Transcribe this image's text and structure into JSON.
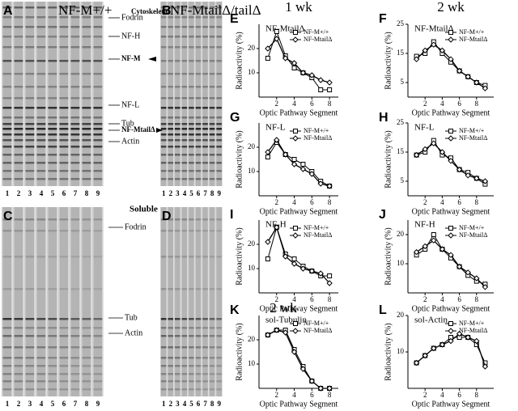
{
  "gels": [
    {
      "letter": "A",
      "title": "NF-M+/+",
      "lanes": [
        1,
        2,
        3,
        4,
        5,
        6,
        7,
        8,
        9
      ]
    },
    {
      "letter": "B",
      "title": "NF-MtailΔ/tailΔ",
      "lanes": [
        1,
        2,
        3,
        4,
        5,
        6,
        7,
        8,
        9
      ]
    },
    {
      "letter": "C",
      "lanes": [
        1,
        2,
        3,
        4,
        5,
        6,
        7,
        8,
        9
      ]
    },
    {
      "letter": "D",
      "lanes": [
        1,
        2,
        3,
        4,
        5,
        6,
        7,
        8,
        9
      ]
    }
  ],
  "fraction_labels": [
    "Cytoskeletal",
    "Soluble"
  ],
  "band_labels_top": [
    "Fodrin",
    "NF-H",
    "NF-M",
    "NF-L",
    "Tub",
    "NF-MtailΔ",
    "Actin"
  ],
  "band_labels_bottom": [
    "Fodrin",
    "Tub",
    "Actin"
  ],
  "column_headers": [
    "1 wk",
    "2 wk"
  ],
  "chart_data": [
    {
      "type": "line",
      "letter": "E",
      "title": "NF-MtailΔ",
      "y_label": "Radioactivity (%)",
      "x_label": "Optic Pathway Segment",
      "x": [
        1,
        2,
        3,
        4,
        5,
        6,
        7,
        8
      ],
      "xlim": [
        0,
        9
      ],
      "xticks": [
        2,
        4,
        6,
        8
      ],
      "ylim": [
        0,
        30
      ],
      "yticks": [
        10,
        20
      ],
      "series": [
        {
          "name": "NF-M+/+",
          "color": "#000000",
          "marker": "square",
          "values": [
            16,
            27,
            17,
            12,
            10,
            8,
            3,
            3
          ]
        },
        {
          "name": "NF-MtailΔ",
          "color": "#000000",
          "marker": "diamond",
          "values": [
            20,
            24,
            16,
            14,
            10,
            9,
            7,
            6
          ]
        }
      ]
    },
    {
      "type": "line",
      "letter": "F",
      "title": "NF-MtailΔ",
      "y_label": "Radioactivity (%)",
      "x_label": "Optic Pathway Segment",
      "x": [
        1,
        2,
        3,
        4,
        5,
        6,
        7,
        8,
        9
      ],
      "xlim": [
        0,
        10
      ],
      "xticks": [
        2,
        4,
        6,
        8
      ],
      "ylim": [
        0,
        25
      ],
      "yticks": [
        5,
        15,
        25
      ],
      "series": [
        {
          "name": "NF-M+/+",
          "color": "#000000",
          "marker": "square",
          "values": [
            14,
            15,
            19,
            15,
            12,
            9,
            7,
            5,
            4
          ]
        },
        {
          "name": "NF-MtailΔ",
          "color": "#000000",
          "marker": "diamond",
          "values": [
            13,
            16,
            18,
            16,
            13,
            9,
            7,
            5,
            3
          ]
        }
      ]
    },
    {
      "type": "line",
      "letter": "G",
      "title": "NF-L",
      "y_label": "Radioactivity (%)",
      "x_label": "Optic Pathway Segment",
      "x": [
        1,
        2,
        3,
        4,
        5,
        6,
        7,
        8
      ],
      "xlim": [
        0,
        9
      ],
      "xticks": [
        2,
        4,
        6,
        8
      ],
      "ylim": [
        0,
        30
      ],
      "yticks": [
        10,
        20
      ],
      "series": [
        {
          "name": "NF-M+/+",
          "color": "#000000",
          "marker": "square",
          "values": [
            16,
            22,
            17,
            15,
            13,
            10,
            6,
            4
          ]
        },
        {
          "name": "NF-MtailΔ",
          "color": "#000000",
          "marker": "diamond",
          "values": [
            18,
            23,
            17,
            13,
            11,
            9,
            5,
            4
          ]
        }
      ]
    },
    {
      "type": "line",
      "letter": "H",
      "title": "NF-L",
      "y_label": "Radioactivity (%)",
      "x_label": "Optic Pathway Segment",
      "x": [
        1,
        2,
        3,
        4,
        5,
        6,
        7,
        8,
        9
      ],
      "xlim": [
        0,
        10
      ],
      "xticks": [
        2,
        4,
        6,
        8
      ],
      "ylim": [
        0,
        25
      ],
      "yticks": [
        5,
        15,
        25
      ],
      "series": [
        {
          "name": "NF-M+/+",
          "color": "#000000",
          "marker": "square",
          "values": [
            14,
            15,
            19,
            14,
            13,
            9,
            8,
            6,
            4
          ]
        },
        {
          "name": "NF-MtailΔ",
          "color": "#000000",
          "marker": "diamond",
          "values": [
            14,
            16,
            18,
            15,
            12,
            9,
            7,
            6,
            5
          ]
        }
      ]
    },
    {
      "type": "line",
      "letter": "I",
      "title": "NF-H",
      "y_label": "Radioactivity (%)",
      "x_label": "Optic Pathway Segment",
      "x": [
        1,
        2,
        3,
        4,
        5,
        6,
        7,
        8
      ],
      "xlim": [
        0,
        9
      ],
      "xticks": [
        2,
        4,
        6,
        8
      ],
      "ylim": [
        0,
        30
      ],
      "yticks": [
        10,
        20
      ],
      "series": [
        {
          "name": "NF-M+/+",
          "color": "#000000",
          "marker": "square",
          "values": [
            14,
            27,
            16,
            14,
            11,
            9,
            7,
            7
          ]
        },
        {
          "name": "NF-MtailΔ",
          "color": "#000000",
          "marker": "diamond",
          "values": [
            21,
            27,
            15,
            12,
            10,
            9,
            8,
            4
          ]
        }
      ]
    },
    {
      "type": "line",
      "letter": "J",
      "title": "NF-H",
      "y_label": "Radioactivity (%)",
      "x_label": "Optic Pathway Segment",
      "x": [
        1,
        2,
        3,
        4,
        5,
        6,
        7,
        8,
        9
      ],
      "xlim": [
        0,
        10
      ],
      "xticks": [
        2,
        4,
        6,
        8
      ],
      "ylim": [
        0,
        25
      ],
      "yticks": [
        10,
        20
      ],
      "series": [
        {
          "name": "NF-M+/+",
          "color": "#000000",
          "marker": "square",
          "values": [
            13,
            15,
            20,
            15,
            12,
            9,
            6,
            4,
            3
          ]
        },
        {
          "name": "NF-MtailΔ",
          "color": "#000000",
          "marker": "diamond",
          "values": [
            14,
            16,
            18,
            15,
            13,
            9,
            7,
            5,
            2
          ]
        }
      ]
    },
    {
      "type": "line",
      "letter": "K",
      "header": "2 wk",
      "title": "sol-Tubulin",
      "y_label": "Radioactivity (%)",
      "x_label": "Optic Pathway Segment",
      "x": [
        1,
        2,
        3,
        4,
        5,
        6,
        7,
        8
      ],
      "xlim": [
        0,
        9
      ],
      "xticks": [
        2,
        4,
        6,
        8
      ],
      "ylim": [
        0,
        30
      ],
      "yticks": [
        10,
        20
      ],
      "series": [
        {
          "name": "NF-M+/+",
          "color": "#000000",
          "marker": "square",
          "values": [
            22,
            24,
            24,
            16,
            9,
            3,
            0,
            0
          ]
        },
        {
          "name": "NF-MtailΔ",
          "color": "#000000",
          "marker": "diamond",
          "values": [
            22,
            24,
            23,
            15,
            8,
            3,
            0,
            0
          ]
        }
      ]
    },
    {
      "type": "line",
      "letter": "L",
      "title": "sol-Actin",
      "y_label": "Radioactivity (%)",
      "x_label": "Optic Pathway Segment",
      "x": [
        1,
        2,
        3,
        4,
        5,
        6,
        7,
        8,
        9
      ],
      "xlim": [
        0,
        10
      ],
      "xticks": [
        2,
        4,
        6,
        8
      ],
      "ylim": [
        0,
        20
      ],
      "yticks": [
        10,
        20
      ],
      "series": [
        {
          "name": "NF-M+/+",
          "color": "#000000",
          "marker": "square",
          "values": [
            7,
            9,
            11,
            12,
            14,
            14,
            14,
            12,
            7
          ]
        },
        {
          "name": "NF-MtailΔ",
          "color": "#000000",
          "marker": "diamond",
          "values": [
            7,
            9,
            11,
            12,
            13,
            15,
            14,
            13,
            6
          ]
        }
      ]
    }
  ]
}
